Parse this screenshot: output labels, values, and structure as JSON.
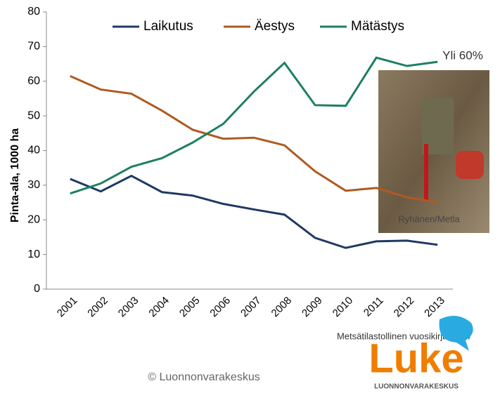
{
  "chart_data": {
    "type": "line",
    "y_label": "Pinta-ala, 1000 ha",
    "categories": [
      "2001",
      "2002",
      "2003",
      "2004",
      "2005",
      "2006",
      "2007",
      "2008",
      "2009",
      "2010",
      "2011",
      "2012",
      "2013"
    ],
    "series": [
      {
        "name": "Laikutus",
        "color": "#1f3864",
        "values": [
          31.8,
          28.2,
          32.7,
          28.0,
          27.0,
          24.6,
          23.0,
          21.5,
          14.8,
          11.9,
          13.8,
          14.0,
          12.8
        ]
      },
      {
        "name": "Äestys",
        "color": "#b05a22",
        "values": [
          61.5,
          57.6,
          56.4,
          51.5,
          46.0,
          43.4,
          43.7,
          41.5,
          34.0,
          28.4,
          29.2,
          26.5,
          25.0
        ]
      },
      {
        "name": "Mätästys",
        "color": "#1e8060",
        "values": [
          27.6,
          30.5,
          35.3,
          37.8,
          42.3,
          47.7,
          57.0,
          65.3,
          53.1,
          52.9,
          66.8,
          64.4,
          65.6
        ]
      }
    ],
    "ylim": [
      0,
      80
    ],
    "yticks": [
      0,
      10,
      20,
      30,
      40,
      50,
      60,
      70,
      80
    ],
    "annotation": "Yli 60%",
    "photo_credit": "Ryhänen/Metla",
    "source": "Metsätilastollinen vuosikirja 2014",
    "copyright": "© Luonnonvarakeskus",
    "logo_text": "Luke",
    "logo_subtext": "LUONNONVARAKESKUS"
  }
}
